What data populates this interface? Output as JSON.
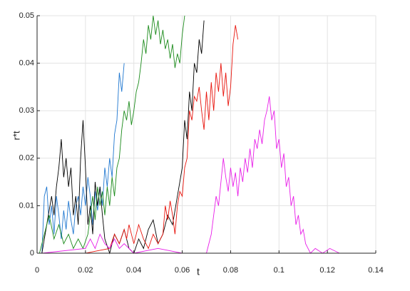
{
  "chart_data": {
    "type": "line",
    "x_label": "t",
    "y_label": "r*t",
    "xlim": [
      0,
      0.14
    ],
    "ylim": [
      0,
      0.05
    ],
    "xticks": [
      0,
      0.02,
      0.04,
      0.06,
      0.08,
      0.1,
      0.12,
      0.14
    ],
    "yticks": [
      0,
      0.01,
      0.02,
      0.03,
      0.04,
      0.05
    ],
    "grid": true,
    "series": [
      {
        "color": "#1f77d0",
        "x": [
          0.002,
          0.003,
          0.004,
          0.005,
          0.006,
          0.007,
          0.008,
          0.009,
          0.01,
          0.011,
          0.012,
          0.013,
          0.014,
          0.015,
          0.016,
          0.017,
          0.018,
          0.019,
          0.02,
          0.021,
          0.022,
          0.023,
          0.024,
          0.025,
          0.026,
          0.027,
          0.028,
          0.029,
          0.03,
          0.031,
          0.032,
          0.033,
          0.034,
          0.035,
          0.036
        ],
        "values": [
          0,
          0.012,
          0.014,
          0.006,
          0.01,
          0.004,
          0.012,
          0.008,
          0.003,
          0.009,
          0.005,
          0.011,
          0.007,
          0.004,
          0.01,
          0.012,
          0.008,
          0.014,
          0.01,
          0.016,
          0.012,
          0.006,
          0.013,
          0.009,
          0.014,
          0.01,
          0.018,
          0.014,
          0.02,
          0.016,
          0.025,
          0.028,
          0.038,
          0.034,
          0.04
        ]
      },
      {
        "color": "#000000",
        "x": [
          0.002,
          0.004,
          0.006,
          0.007,
          0.008,
          0.009,
          0.01,
          0.011,
          0.012,
          0.013,
          0.014,
          0.015,
          0.016,
          0.017,
          0.018,
          0.019,
          0.02,
          0.021,
          0.022,
          0.023,
          0.024,
          0.025,
          0.026,
          0.027,
          0.028,
          0.03,
          0.032,
          0.034,
          0.036,
          0.038,
          0.04,
          0.042,
          0.044,
          0.046,
          0.048,
          0.05,
          0.052,
          0.054,
          0.056,
          0.058,
          0.06,
          0.061,
          0.062,
          0.063,
          0.064,
          0.065,
          0.066,
          0.067,
          0.068,
          0.069
        ],
        "values": [
          0,
          0.006,
          0.012,
          0.008,
          0.014,
          0.018,
          0.024,
          0.016,
          0.02,
          0.014,
          0.018,
          0.008,
          0.012,
          0.006,
          0.02,
          0.028,
          0.018,
          0.006,
          0.01,
          0.004,
          0.015,
          0.01,
          0.014,
          0.008,
          0.003,
          0,
          0.004,
          0.002,
          0.005,
          0.001,
          0,
          0.003,
          0.001,
          0.005,
          0.007,
          0.002,
          0.004,
          0.008,
          0.006,
          0.012,
          0.018,
          0.028,
          0.024,
          0.034,
          0.03,
          0.04,
          0.038,
          0.045,
          0.042,
          0.049
        ]
      },
      {
        "color": "#1a8a1a",
        "x": [
          0.001,
          0.003,
          0.005,
          0.007,
          0.009,
          0.011,
          0.013,
          0.015,
          0.017,
          0.019,
          0.021,
          0.022,
          0.023,
          0.024,
          0.025,
          0.026,
          0.027,
          0.028,
          0.029,
          0.03,
          0.031,
          0.032,
          0.033,
          0.034,
          0.035,
          0.036,
          0.037,
          0.038,
          0.039,
          0.04,
          0.041,
          0.042,
          0.043,
          0.044,
          0.045,
          0.046,
          0.047,
          0.048,
          0.049,
          0.05,
          0.051,
          0.052,
          0.053,
          0.054,
          0.055,
          0.056,
          0.057,
          0.058,
          0.059,
          0.06,
          0.061
        ],
        "values": [
          0,
          0.004,
          0.008,
          0.003,
          0.006,
          0.002,
          0.004,
          0.001,
          0.003,
          0.001,
          0.004,
          0.008,
          0.012,
          0.007,
          0.014,
          0.01,
          0.013,
          0.008,
          0.014,
          0.01,
          0.016,
          0.012,
          0.018,
          0.02,
          0.026,
          0.03,
          0.028,
          0.032,
          0.027,
          0.03,
          0.034,
          0.036,
          0.04,
          0.045,
          0.042,
          0.048,
          0.045,
          0.05,
          0.046,
          0.049,
          0.044,
          0.047,
          0.043,
          0.045,
          0.041,
          0.044,
          0.039,
          0.042,
          0.04,
          0.046,
          0.05
        ]
      },
      {
        "color": "#e8140c",
        "x": [
          0.003,
          0.02,
          0.03,
          0.032,
          0.034,
          0.036,
          0.037,
          0.038,
          0.04,
          0.042,
          0.044,
          0.046,
          0.048,
          0.05,
          0.052,
          0.053,
          0.054,
          0.055,
          0.056,
          0.057,
          0.058,
          0.059,
          0.06,
          0.061,
          0.062,
          0.063,
          0.064,
          0.065,
          0.066,
          0.067,
          0.068,
          0.069,
          0.07,
          0.071,
          0.072,
          0.073,
          0.074,
          0.075,
          0.076,
          0.077,
          0.078,
          0.079,
          0.08,
          0.081,
          0.082,
          0.083
        ],
        "values": [
          0,
          0,
          0.001,
          0.004,
          0.002,
          0.005,
          0.003,
          0.006,
          0.002,
          0.006,
          0.003,
          0.001,
          0.004,
          0.002,
          0.004,
          0.01,
          0.007,
          0.011,
          0.008,
          0.004,
          0.01,
          0.013,
          0.012,
          0.018,
          0.02,
          0.03,
          0.028,
          0.033,
          0.032,
          0.035,
          0.03,
          0.026,
          0.034,
          0.028,
          0.036,
          0.03,
          0.038,
          0.034,
          0.04,
          0.033,
          0.038,
          0.031,
          0.035,
          0.044,
          0.048,
          0.045
        ]
      },
      {
        "color": "#e81ee8",
        "x": [
          0.002,
          0.02,
          0.022,
          0.024,
          0.026,
          0.028,
          0.03,
          0.032,
          0.034,
          0.036,
          0.04,
          0.05,
          0.06,
          0.07,
          0.072,
          0.073,
          0.074,
          0.075,
          0.076,
          0.077,
          0.078,
          0.079,
          0.08,
          0.081,
          0.082,
          0.083,
          0.084,
          0.085,
          0.086,
          0.087,
          0.088,
          0.089,
          0.09,
          0.091,
          0.092,
          0.093,
          0.094,
          0.095,
          0.096,
          0.097,
          0.098,
          0.099,
          0.1,
          0.101,
          0.102,
          0.103,
          0.104,
          0.105,
          0.106,
          0.107,
          0.108,
          0.109,
          0.11,
          0.111,
          0.112,
          0.113,
          0.115,
          0.118,
          0.121,
          0.125
        ],
        "values": [
          0,
          0.001,
          0.003,
          0.001,
          0.004,
          0.002,
          0.001,
          0.003,
          0.001,
          0.002,
          0,
          0.001,
          0,
          0,
          0.004,
          0.008,
          0.012,
          0.01,
          0.015,
          0.02,
          0.016,
          0.013,
          0.018,
          0.014,
          0.017,
          0.012,
          0.018,
          0.015,
          0.02,
          0.017,
          0.022,
          0.018,
          0.024,
          0.022,
          0.026,
          0.023,
          0.028,
          0.03,
          0.033,
          0.028,
          0.03,
          0.022,
          0.024,
          0.018,
          0.021,
          0.014,
          0.016,
          0.01,
          0.012,
          0.006,
          0.008,
          0.004,
          0.005,
          0.002,
          0.001,
          0,
          0.001,
          0,
          0.001,
          0
        ]
      }
    ]
  }
}
